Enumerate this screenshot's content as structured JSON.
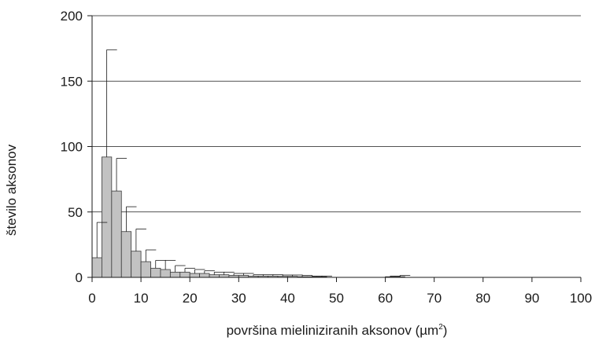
{
  "chart_data": {
    "type": "bar",
    "title": "",
    "xlabel_main": "površina mieliniziranih aksonov (µm",
    "xlabel_sup": "2",
    "xlabel_end": ")",
    "ylabel": "število aksonov",
    "xlim": [
      0,
      100
    ],
    "ylim": [
      0,
      200
    ],
    "xticks": [
      0,
      10,
      20,
      30,
      40,
      50,
      60,
      70,
      80,
      90,
      100
    ],
    "yticks": [
      0,
      50,
      100,
      150,
      200
    ],
    "grid": "horizontal",
    "bin_width": 2,
    "bins": [
      {
        "start": 0,
        "value": 15,
        "error": 42
      },
      {
        "start": 2,
        "value": 92,
        "error": 174
      },
      {
        "start": 4,
        "value": 66,
        "error": 91
      },
      {
        "start": 6,
        "value": 35,
        "error": 54
      },
      {
        "start": 8,
        "value": 20,
        "error": 37
      },
      {
        "start": 10,
        "value": 12,
        "error": 21
      },
      {
        "start": 12,
        "value": 7,
        "error": 13
      },
      {
        "start": 14,
        "value": 6,
        "error": 13
      },
      {
        "start": 16,
        "value": 4,
        "error": 9
      },
      {
        "start": 18,
        "value": 4,
        "error": 7
      },
      {
        "start": 20,
        "value": 3,
        "error": 6
      },
      {
        "start": 22,
        "value": 3,
        "error": 5
      },
      {
        "start": 24,
        "value": 2,
        "error": 4
      },
      {
        "start": 26,
        "value": 2,
        "error": 4
      },
      {
        "start": 28,
        "value": 1.5,
        "error": 3
      },
      {
        "start": 30,
        "value": 1.5,
        "error": 3
      },
      {
        "start": 32,
        "value": 1,
        "error": 2
      },
      {
        "start": 34,
        "value": 1,
        "error": 2
      },
      {
        "start": 36,
        "value": 1,
        "error": 2
      },
      {
        "start": 38,
        "value": 0.8,
        "error": 1.8
      },
      {
        "start": 40,
        "value": 0.8,
        "error": 1.8
      },
      {
        "start": 42,
        "value": 0.5,
        "error": 1.5
      },
      {
        "start": 44,
        "value": 0.5,
        "error": 1
      },
      {
        "start": 46,
        "value": 0.5,
        "error": 1
      },
      {
        "start": 60,
        "value": 0.5,
        "error": 1
      },
      {
        "start": 62,
        "value": 0.5,
        "error": 1.5
      }
    ]
  }
}
